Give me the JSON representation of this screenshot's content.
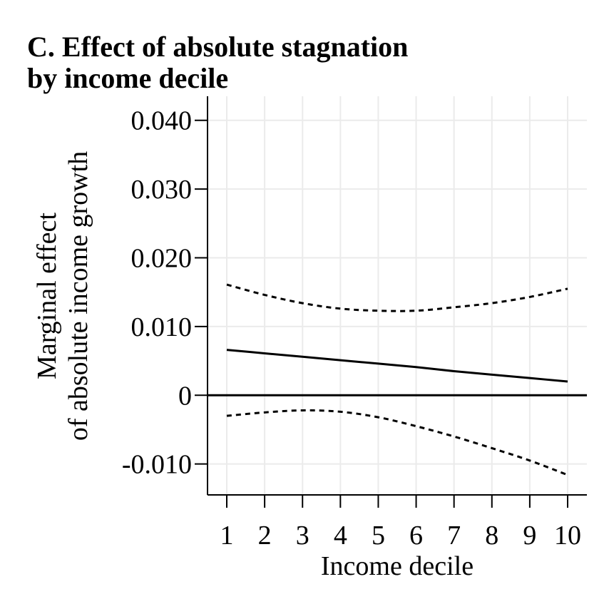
{
  "chart_data": {
    "type": "line",
    "title_lines": [
      "C. Effect of absolute stagnation",
      "by income decile"
    ],
    "xlabel": "Income decile",
    "ylabel_lines": [
      "Marginal effect",
      "of absolute income growth"
    ],
    "x": [
      1,
      2,
      3,
      4,
      5,
      6,
      7,
      8,
      9,
      10
    ],
    "xticks": [
      "1",
      "2",
      "3",
      "4",
      "5",
      "6",
      "7",
      "8",
      "9",
      "10"
    ],
    "xlim": [
      0.5,
      10.5
    ],
    "yticks": [
      {
        "value": -0.01,
        "label": "-0.010"
      },
      {
        "value": 0,
        "label": "0"
      },
      {
        "value": 0.01,
        "label": "0.010"
      },
      {
        "value": 0.02,
        "label": "0.020"
      },
      {
        "value": 0.03,
        "label": "0.030"
      },
      {
        "value": 0.04,
        "label": "0.040"
      }
    ],
    "ylim": [
      -0.0145,
      0.0435
    ],
    "grid": true,
    "reference_line": 0,
    "series": [
      {
        "role": "estimate",
        "style": "solid",
        "values": [
          0.0066,
          0.0061,
          0.0056,
          0.0051,
          0.0046,
          0.0041,
          0.0035,
          0.003,
          0.0025,
          0.002
        ]
      },
      {
        "role": "upper-ci",
        "style": "dotted",
        "values": [
          0.0161,
          0.0146,
          0.0134,
          0.0126,
          0.0123,
          0.0123,
          0.0128,
          0.0134,
          0.0143,
          0.0155
        ]
      },
      {
        "role": "lower-ci",
        "style": "dotted",
        "values": [
          -0.003,
          -0.0025,
          -0.0022,
          -0.0024,
          -0.0032,
          -0.0045,
          -0.006,
          -0.0077,
          -0.0095,
          -0.0116
        ]
      }
    ]
  }
}
